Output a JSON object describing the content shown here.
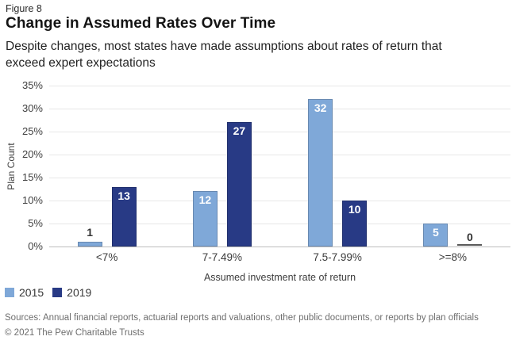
{
  "figure_label": "Figure 8",
  "chart_data": {
    "type": "bar",
    "title": "Change in Assumed Rates Over Time",
    "subtitle": "Despite changes, most states have made assumptions about rates of return that\nexceed expert expectations",
    "categories": [
      "<7%",
      "7-7.49%",
      "7.5-7.99%",
      ">=8%"
    ],
    "series": [
      {
        "name": "2015",
        "color": "#7fa8d8",
        "values": [
          1,
          12,
          32,
          5
        ]
      },
      {
        "name": "2019",
        "color": "#283a85",
        "values": [
          13,
          27,
          10,
          0
        ]
      }
    ],
    "xlabel": "Assumed investment rate of return",
    "ylabel": "Plan Count",
    "ylim": [
      0,
      35
    ],
    "ytick_step": 5,
    "ytick_suffix": "%",
    "grid": true,
    "bar_value_labels": true,
    "legend_position": "bottom-left"
  },
  "footer": {
    "sources": "Sources: Annual financial reports, actuarial reports and valuations, other public documents, or reports by plan officials",
    "copyright": "© 2021 The Pew Charitable Trusts"
  },
  "colors": {
    "series_2015": "#7fa8d8",
    "series_2019": "#283a85",
    "gridline": "#e7e7e7",
    "axis_line": "#bdbdbd",
    "footer_text": "#6e6e6e"
  }
}
